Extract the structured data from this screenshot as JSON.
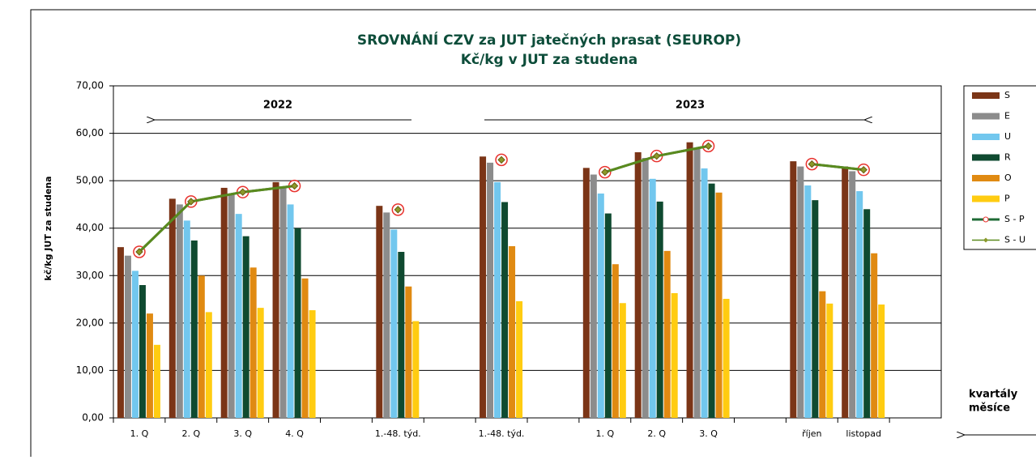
{
  "chart_data": {
    "type": "bar",
    "title": "SROVNÁNÍ  CZV za JUT jatečných prasat (SEUROP)",
    "subtitle": "Kč/kg v JUT za studena",
    "y_label": "kč/kg JUT za studena",
    "annotations": [
      "2022",
      "2023",
      "kvartály",
      "měsíce"
    ],
    "categories": [
      "1. Q",
      "2. Q",
      "3. Q",
      "4. Q",
      null,
      "1.-48. týd.",
      null,
      "1.-48. týd.",
      null,
      "1. Q",
      "2. Q",
      "3. Q",
      null,
      "říjen",
      "listopad",
      null
    ],
    "series": [
      {
        "name": "S",
        "color": "#7b3517",
        "values": [
          36,
          46.2,
          48.5,
          49.7,
          null,
          44.7,
          null,
          55.1,
          null,
          52.7,
          56,
          58.1,
          null,
          54.1,
          53,
          null
        ]
      },
      {
        "name": "E",
        "color": "#8c8c8c",
        "values": [
          34.2,
          45,
          47.2,
          48.5,
          null,
          43.3,
          null,
          53.8,
          null,
          51.3,
          54.8,
          56.8,
          null,
          53,
          52,
          null
        ]
      },
      {
        "name": "U",
        "color": "#72c7ee",
        "values": [
          31,
          41.6,
          43,
          45,
          null,
          39.7,
          null,
          49.7,
          null,
          47.3,
          50.4,
          52.6,
          null,
          49,
          47.8,
          null
        ]
      },
      {
        "name": "R",
        "color": "#0f4a30",
        "values": [
          28,
          37.4,
          38.3,
          40,
          null,
          35,
          null,
          45.5,
          null,
          43.1,
          45.6,
          49.4,
          null,
          45.9,
          44,
          null
        ]
      },
      {
        "name": "O",
        "color": "#e08a12",
        "values": [
          22,
          30,
          31.7,
          29.4,
          null,
          27.7,
          null,
          36.2,
          null,
          32.4,
          35.2,
          47.5,
          null,
          26.7,
          34.7,
          null
        ]
      },
      {
        "name": "P",
        "color": "#ffcc11",
        "values": [
          15.4,
          22.3,
          23.2,
          22.7,
          null,
          20.4,
          null,
          24.6,
          null,
          24.2,
          26.3,
          25.1,
          null,
          24.1,
          23.9,
          null
        ]
      },
      {
        "name": "S - P",
        "type": "line",
        "color": "#1f6b36",
        "marker_color": "#e8322e",
        "values": [
          35,
          45.6,
          47.6,
          48.9,
          null,
          43.9,
          null,
          54.4,
          null,
          51.8,
          55.2,
          57.3,
          null,
          53.5,
          52.3,
          null
        ]
      },
      {
        "name": "S - U",
        "type": "line",
        "color": "#5a8a1e",
        "marker_color": "#8a9a2a",
        "values": [
          35,
          45.6,
          47.6,
          48.9,
          null,
          43.9,
          null,
          54.4,
          null,
          51.8,
          55.2,
          57.3,
          null,
          53.5,
          52.3,
          null
        ]
      }
    ],
    "ylim": [
      0,
      70
    ],
    "yticks": [
      {
        "value": 0,
        "label": "0,00"
      },
      {
        "value": 10,
        "label": "10,00"
      },
      {
        "value": 20,
        "label": "20,00"
      },
      {
        "value": 30,
        "label": "30,00"
      },
      {
        "value": 40,
        "label": "40,00"
      },
      {
        "value": 50,
        "label": "50,00"
      },
      {
        "value": 60,
        "label": "60,00"
      },
      {
        "value": 70,
        "label": "70,00"
      }
    ],
    "grid": true
  }
}
